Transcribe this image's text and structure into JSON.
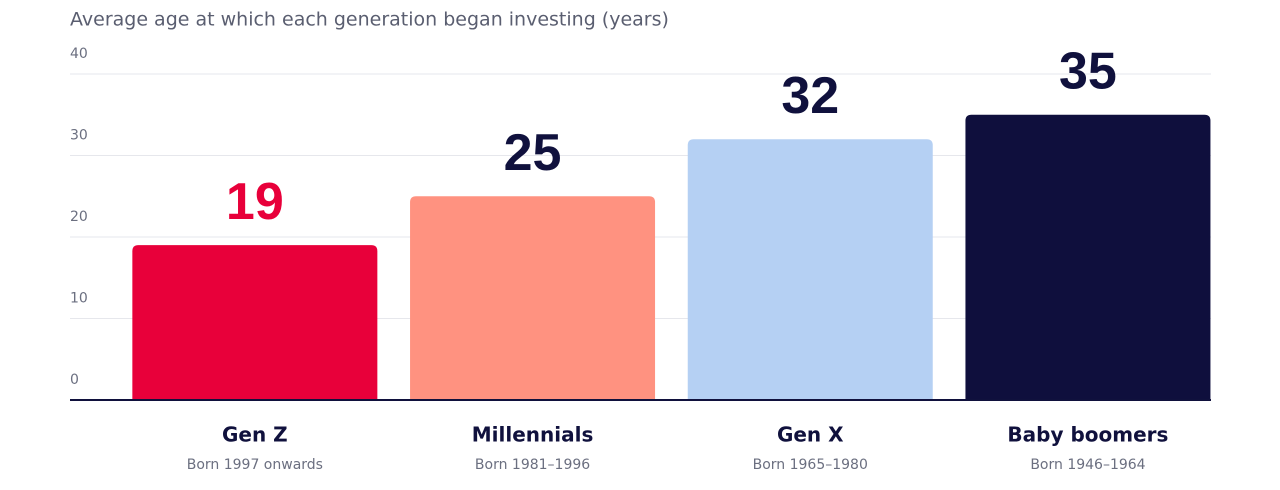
{
  "chart_data": {
    "type": "bar",
    "title": "Average age at which each generation began investing (years)",
    "categories": [
      "Gen Z",
      "Millennials",
      "Gen X",
      "Baby boomers"
    ],
    "category_subtitles": [
      "Born 1997 onwards",
      "Born 1981–1996",
      "Born 1965–1980",
      "Born 1946–1964"
    ],
    "values": [
      19,
      25,
      32,
      35
    ],
    "colors": [
      "#e8003a",
      "#ff9280",
      "#b5d0f3",
      "#0f0f3d"
    ],
    "value_label_colors": [
      "#e8003a",
      "#10113d",
      "#10113d",
      "#10113d"
    ],
    "ylim": [
      0,
      40
    ],
    "yticks": [
      0,
      10,
      20,
      30,
      40
    ],
    "grid": true
  }
}
